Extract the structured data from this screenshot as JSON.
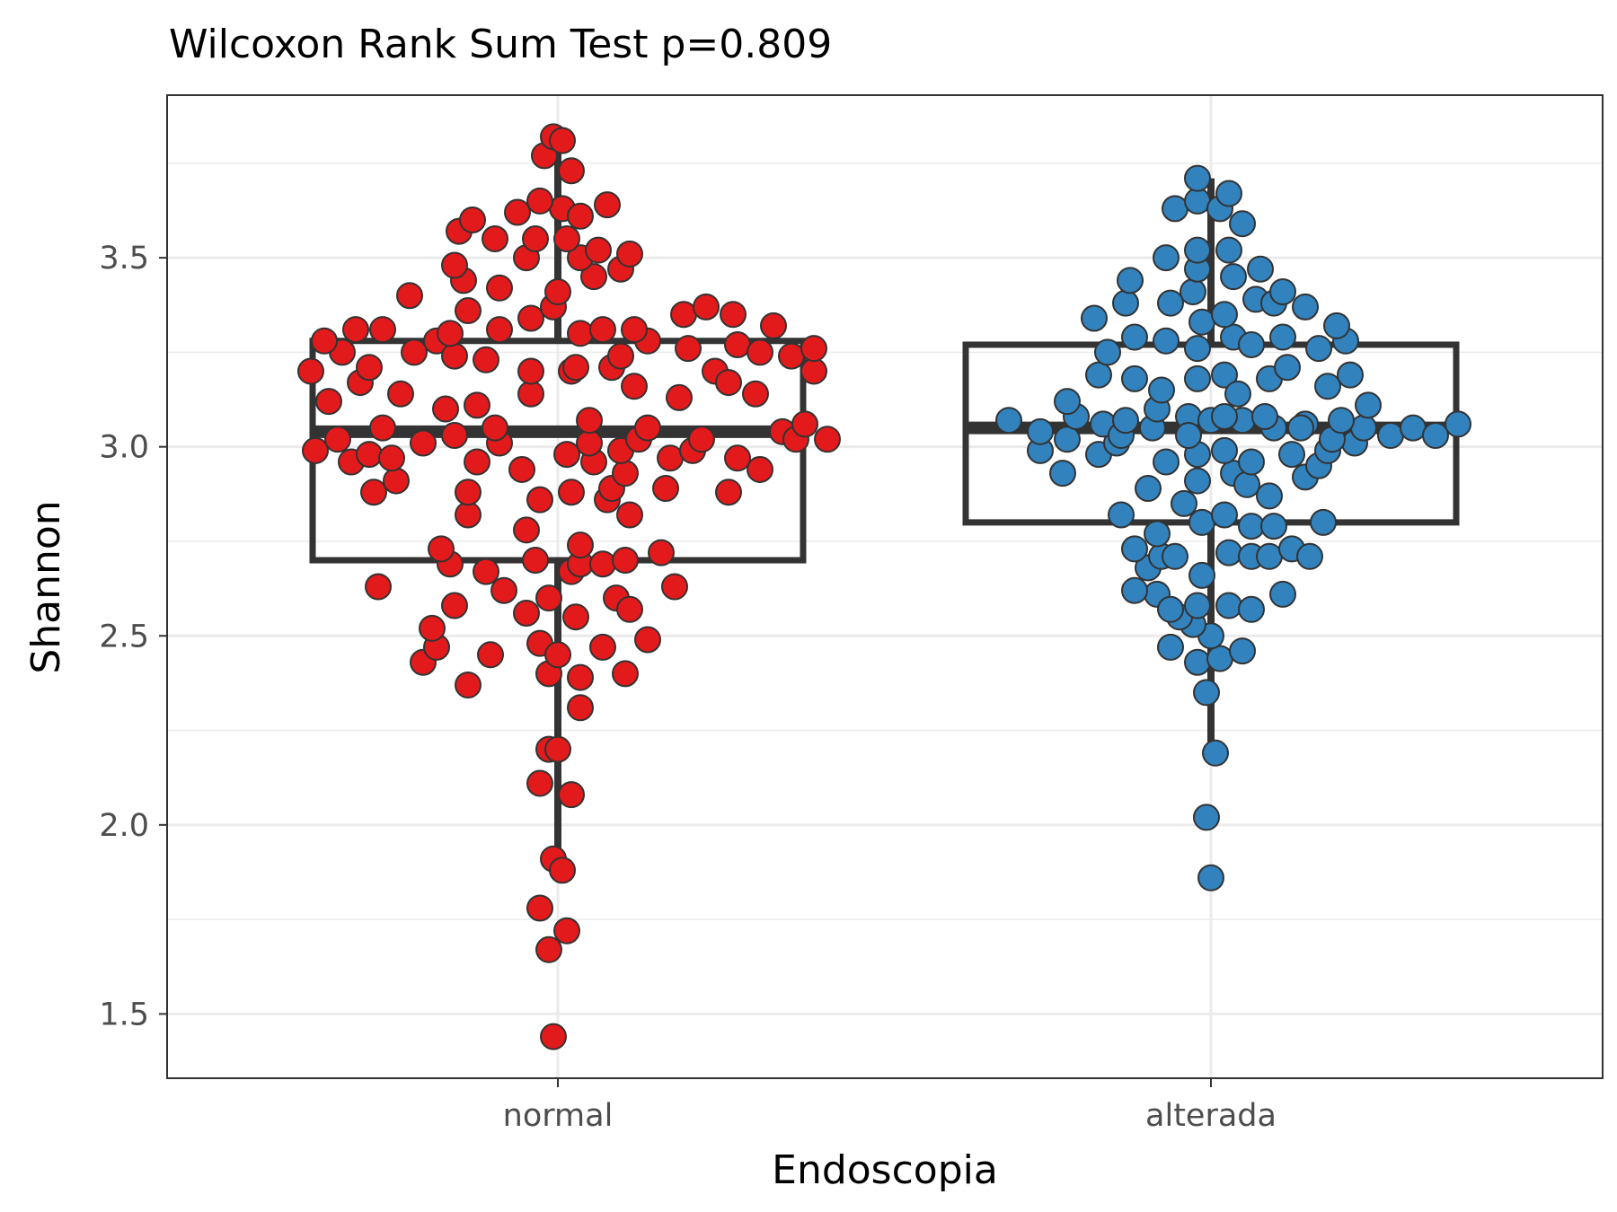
{
  "chart_data": {
    "type": "scatter",
    "title": "Wilcoxon Rank Sum Test p=0.809",
    "xlabel": "Endoscopia",
    "ylabel": "Shannon",
    "categories": [
      "normal",
      "alterada"
    ],
    "ylim": [
      1.33,
      3.93
    ],
    "y_ticks": [
      "1.5",
      "2.0",
      "2.5",
      "3.0",
      "3.5"
    ],
    "grid": true,
    "boxplots": [
      {
        "category": "normal",
        "whisker_low": 1.89,
        "q1": 2.7,
        "median": 3.04,
        "q3": 3.28,
        "whisker_high": 3.8
      },
      {
        "category": "alterada",
        "whisker_low": 2.2,
        "q1": 2.8,
        "median": 3.05,
        "q3": 3.27,
        "whisker_high": 3.71
      }
    ],
    "series": [
      {
        "category": "normal",
        "color": "#e31a1c",
        "points": [
          [
            -0.01,
            1.44
          ],
          [
            -0.02,
            1.67
          ],
          [
            -0.04,
            1.78
          ],
          [
            0.02,
            1.72
          ],
          [
            -0.01,
            1.91
          ],
          [
            0.01,
            1.88
          ],
          [
            -0.04,
            2.11
          ],
          [
            0.03,
            2.08
          ],
          [
            -0.02,
            2.2
          ],
          [
            0.0,
            2.2
          ],
          [
            0.05,
            2.31
          ],
          [
            -0.2,
            2.37
          ],
          [
            -0.3,
            2.43
          ],
          [
            -0.15,
            2.45
          ],
          [
            -0.27,
            2.47
          ],
          [
            -0.04,
            2.48
          ],
          [
            -0.02,
            2.4
          ],
          [
            0.0,
            2.45
          ],
          [
            0.1,
            2.47
          ],
          [
            0.15,
            2.4
          ],
          [
            0.2,
            2.49
          ],
          [
            0.05,
            2.39
          ],
          [
            -0.28,
            2.52
          ],
          [
            -0.23,
            2.58
          ],
          [
            -0.07,
            2.56
          ],
          [
            0.04,
            2.55
          ],
          [
            0.13,
            2.6
          ],
          [
            0.16,
            2.57
          ],
          [
            -0.4,
            2.63
          ],
          [
            -0.12,
            2.62
          ],
          [
            -0.02,
            2.6
          ],
          [
            0.26,
            2.63
          ],
          [
            -0.24,
            2.69
          ],
          [
            -0.16,
            2.67
          ],
          [
            -0.05,
            2.7
          ],
          [
            0.03,
            2.67
          ],
          [
            0.05,
            2.69
          ],
          [
            0.1,
            2.69
          ],
          [
            0.15,
            2.7
          ],
          [
            0.23,
            2.72
          ],
          [
            -0.26,
            2.73
          ],
          [
            0.05,
            2.74
          ],
          [
            -0.2,
            2.82
          ],
          [
            -0.07,
            2.78
          ],
          [
            0.03,
            2.88
          ],
          [
            0.11,
            2.86
          ],
          [
            0.16,
            2.82
          ],
          [
            -0.2,
            2.88
          ],
          [
            -0.04,
            2.86
          ],
          [
            0.12,
            2.89
          ],
          [
            0.24,
            2.89
          ],
          [
            0.38,
            2.88
          ],
          [
            -0.41,
            2.88
          ],
          [
            -0.36,
            2.91
          ],
          [
            -0.18,
            2.96
          ],
          [
            -0.08,
            2.94
          ],
          [
            0.02,
            2.98
          ],
          [
            0.08,
            2.96
          ],
          [
            0.15,
            2.93
          ],
          [
            0.25,
            2.97
          ],
          [
            0.3,
            2.99
          ],
          [
            0.4,
            2.97
          ],
          [
            0.45,
            2.94
          ],
          [
            -0.54,
            2.99
          ],
          [
            -0.46,
            2.96
          ],
          [
            -0.42,
            2.98
          ],
          [
            -0.37,
            2.97
          ],
          [
            -0.3,
            3.01
          ],
          [
            -0.23,
            3.03
          ],
          [
            -0.13,
            3.01
          ],
          [
            0.07,
            3.01
          ],
          [
            0.14,
            2.99
          ],
          [
            0.18,
            3.02
          ],
          [
            -0.49,
            3.02
          ],
          [
            -0.39,
            3.05
          ],
          [
            -0.14,
            3.05
          ],
          [
            0.07,
            3.07
          ],
          [
            0.2,
            3.05
          ],
          [
            0.32,
            3.02
          ],
          [
            0.5,
            3.04
          ],
          [
            0.53,
            3.02
          ],
          [
            0.55,
            3.06
          ],
          [
            0.6,
            3.02
          ],
          [
            -0.55,
            3.2
          ],
          [
            -0.51,
            3.12
          ],
          [
            -0.44,
            3.17
          ],
          [
            -0.35,
            3.14
          ],
          [
            -0.25,
            3.1
          ],
          [
            -0.18,
            3.11
          ],
          [
            -0.06,
            3.14
          ],
          [
            0.03,
            3.2
          ],
          [
            0.12,
            3.21
          ],
          [
            0.17,
            3.16
          ],
          [
            0.27,
            3.13
          ],
          [
            0.35,
            3.2
          ],
          [
            0.38,
            3.17
          ],
          [
            0.44,
            3.14
          ],
          [
            0.57,
            3.2
          ],
          [
            -0.48,
            3.25
          ],
          [
            -0.42,
            3.21
          ],
          [
            -0.32,
            3.25
          ],
          [
            -0.27,
            3.28
          ],
          [
            -0.23,
            3.24
          ],
          [
            -0.16,
            3.23
          ],
          [
            -0.06,
            3.2
          ],
          [
            0.04,
            3.21
          ],
          [
            0.14,
            3.24
          ],
          [
            0.2,
            3.28
          ],
          [
            0.29,
            3.26
          ],
          [
            0.4,
            3.27
          ],
          [
            0.45,
            3.25
          ],
          [
            0.52,
            3.24
          ],
          [
            0.57,
            3.26
          ],
          [
            -0.52,
            3.28
          ],
          [
            -0.45,
            3.31
          ],
          [
            -0.39,
            3.31
          ],
          [
            -0.24,
            3.3
          ],
          [
            -0.2,
            3.36
          ],
          [
            -0.13,
            3.31
          ],
          [
            -0.06,
            3.34
          ],
          [
            -0.01,
            3.37
          ],
          [
            0.05,
            3.3
          ],
          [
            0.1,
            3.31
          ],
          [
            0.17,
            3.31
          ],
          [
            0.28,
            3.35
          ],
          [
            0.33,
            3.37
          ],
          [
            0.39,
            3.35
          ],
          [
            0.48,
            3.32
          ],
          [
            -0.33,
            3.4
          ],
          [
            -0.21,
            3.44
          ],
          [
            -0.13,
            3.42
          ],
          [
            0.0,
            3.41
          ],
          [
            0.08,
            3.45
          ],
          [
            -0.23,
            3.48
          ],
          [
            -0.07,
            3.5
          ],
          [
            0.05,
            3.5
          ],
          [
            0.14,
            3.47
          ],
          [
            -0.22,
            3.57
          ],
          [
            -0.14,
            3.55
          ],
          [
            -0.05,
            3.55
          ],
          [
            0.02,
            3.55
          ],
          [
            0.09,
            3.52
          ],
          [
            0.16,
            3.51
          ],
          [
            -0.19,
            3.6
          ],
          [
            -0.09,
            3.62
          ],
          [
            0.01,
            3.63
          ],
          [
            0.05,
            3.61
          ],
          [
            0.11,
            3.64
          ],
          [
            -0.04,
            3.65
          ],
          [
            0.03,
            3.73
          ],
          [
            -0.03,
            3.77
          ],
          [
            -0.01,
            3.82
          ],
          [
            0.01,
            3.81
          ]
        ]
      },
      {
        "category": "alterada",
        "color": "#3182bd",
        "points": [
          [
            0.0,
            1.86
          ],
          [
            -0.01,
            2.02
          ],
          [
            0.01,
            2.19
          ],
          [
            -0.01,
            2.35
          ],
          [
            -0.03,
            2.43
          ],
          [
            0.02,
            2.44
          ],
          [
            0.0,
            2.5
          ],
          [
            0.07,
            2.46
          ],
          [
            -0.09,
            2.47
          ],
          [
            -0.04,
            2.53
          ],
          [
            -0.07,
            2.55
          ],
          [
            -0.03,
            2.58
          ],
          [
            0.04,
            2.58
          ],
          [
            0.09,
            2.57
          ],
          [
            0.16,
            2.61
          ],
          [
            -0.12,
            2.61
          ],
          [
            -0.09,
            2.57
          ],
          [
            -0.17,
            2.62
          ],
          [
            -0.14,
            2.68
          ],
          [
            -0.11,
            2.71
          ],
          [
            -0.08,
            2.71
          ],
          [
            -0.02,
            2.66
          ],
          [
            0.04,
            2.72
          ],
          [
            0.09,
            2.71
          ],
          [
            0.13,
            2.71
          ],
          [
            0.18,
            2.73
          ],
          [
            0.22,
            2.71
          ],
          [
            -0.17,
            2.73
          ],
          [
            -0.12,
            2.77
          ],
          [
            -0.02,
            2.8
          ],
          [
            0.03,
            2.82
          ],
          [
            0.09,
            2.79
          ],
          [
            0.14,
            2.79
          ],
          [
            0.25,
            2.8
          ],
          [
            -0.2,
            2.82
          ],
          [
            -0.14,
            2.89
          ],
          [
            -0.06,
            2.85
          ],
          [
            -0.03,
            2.91
          ],
          [
            0.05,
            2.93
          ],
          [
            0.08,
            2.9
          ],
          [
            0.13,
            2.87
          ],
          [
            0.21,
            2.92
          ],
          [
            0.24,
            2.95
          ],
          [
            -0.33,
            2.93
          ],
          [
            -0.25,
            2.98
          ],
          [
            -0.21,
            3.01
          ],
          [
            -0.1,
            2.96
          ],
          [
            -0.03,
            2.98
          ],
          [
            0.03,
            2.99
          ],
          [
            0.09,
            2.96
          ],
          [
            0.18,
            2.98
          ],
          [
            0.26,
            2.99
          ],
          [
            0.32,
            3.01
          ],
          [
            -0.38,
            2.99
          ],
          [
            -0.32,
            3.02
          ],
          [
            -0.24,
            3.06
          ],
          [
            -0.2,
            3.03
          ],
          [
            -0.13,
            3.05
          ],
          [
            -0.05,
            3.08
          ],
          [
            0.0,
            3.07
          ],
          [
            0.07,
            3.07
          ],
          [
            0.14,
            3.05
          ],
          [
            0.21,
            3.06
          ],
          [
            0.27,
            3.02
          ],
          [
            0.34,
            3.05
          ],
          [
            0.4,
            3.03
          ],
          [
            -0.45,
            3.07
          ],
          [
            -0.38,
            3.04
          ],
          [
            -0.3,
            3.08
          ],
          [
            -0.19,
            3.07
          ],
          [
            -0.12,
            3.1
          ],
          [
            -0.05,
            3.03
          ],
          [
            0.03,
            3.08
          ],
          [
            0.12,
            3.08
          ],
          [
            0.2,
            3.05
          ],
          [
            0.29,
            3.07
          ],
          [
            0.35,
            3.11
          ],
          [
            0.45,
            3.05
          ],
          [
            0.5,
            3.03
          ],
          [
            0.55,
            3.06
          ],
          [
            -0.32,
            3.12
          ],
          [
            -0.25,
            3.19
          ],
          [
            -0.17,
            3.18
          ],
          [
            -0.11,
            3.15
          ],
          [
            -0.03,
            3.18
          ],
          [
            0.03,
            3.19
          ],
          [
            0.06,
            3.14
          ],
          [
            0.13,
            3.18
          ],
          [
            0.17,
            3.21
          ],
          [
            0.26,
            3.16
          ],
          [
            0.31,
            3.19
          ],
          [
            -0.23,
            3.25
          ],
          [
            -0.17,
            3.29
          ],
          [
            -0.1,
            3.28
          ],
          [
            -0.03,
            3.26
          ],
          [
            0.05,
            3.29
          ],
          [
            0.09,
            3.27
          ],
          [
            0.16,
            3.29
          ],
          [
            0.24,
            3.26
          ],
          [
            0.3,
            3.28
          ],
          [
            -0.26,
            3.34
          ],
          [
            -0.19,
            3.38
          ],
          [
            -0.09,
            3.38
          ],
          [
            -0.02,
            3.33
          ],
          [
            0.03,
            3.35
          ],
          [
            0.1,
            3.39
          ],
          [
            0.14,
            3.38
          ],
          [
            0.21,
            3.37
          ],
          [
            0.28,
            3.32
          ],
          [
            -0.18,
            3.44
          ],
          [
            -0.04,
            3.41
          ],
          [
            -0.03,
            3.47
          ],
          [
            0.05,
            3.45
          ],
          [
            0.11,
            3.47
          ],
          [
            0.16,
            3.41
          ],
          [
            -0.1,
            3.5
          ],
          [
            -0.03,
            3.52
          ],
          [
            0.04,
            3.52
          ],
          [
            0.07,
            3.59
          ],
          [
            -0.08,
            3.63
          ],
          [
            -0.03,
            3.65
          ],
          [
            0.02,
            3.63
          ],
          [
            0.04,
            3.67
          ],
          [
            -0.03,
            3.71
          ]
        ]
      }
    ]
  }
}
